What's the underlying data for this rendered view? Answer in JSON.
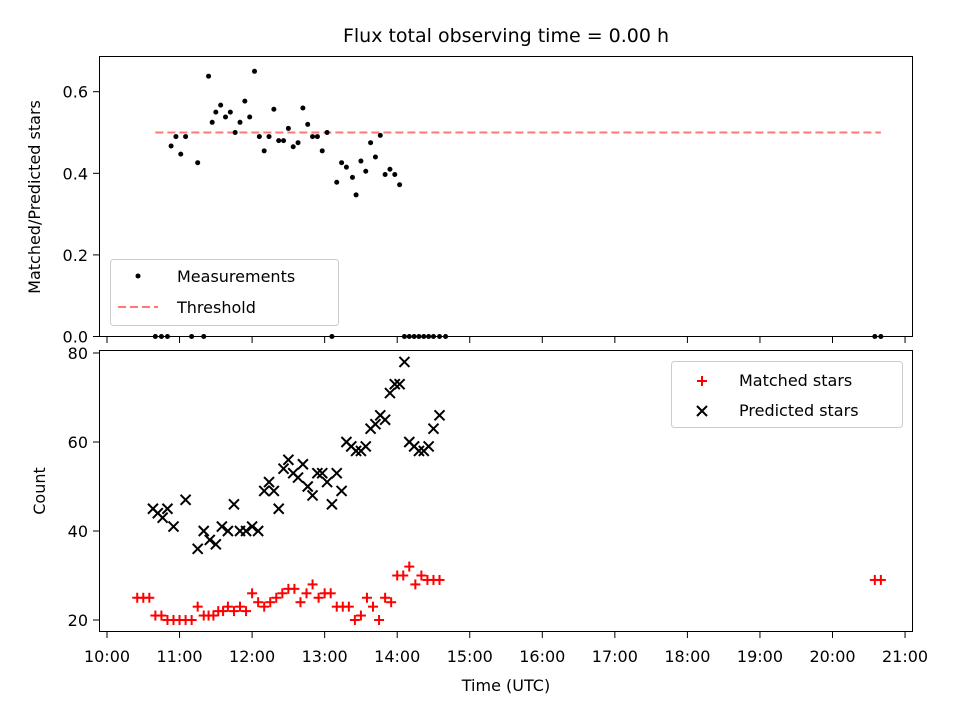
{
  "chart_data": [
    {
      "type": "scatter",
      "title": "Flux total observing time = 0.00 h",
      "xlabel": "",
      "ylabel": "Matched/Predicted stars",
      "xlim": [
        "10:00",
        "21:00"
      ],
      "ylim": [
        0,
        0.68
      ],
      "yticks": [
        0.0,
        0.2,
        0.4,
        0.6
      ],
      "yticklabels": [
        "0.0",
        "0.2",
        "0.4",
        "0.6"
      ],
      "legend_position": "lower-left",
      "threshold": {
        "name": "Threshold",
        "value": 0.5,
        "x_start": "10:40",
        "x_end": "20:40",
        "color": "#ff7777",
        "style": "dashed"
      },
      "series": [
        {
          "name": "Measurements",
          "marker": "dot",
          "color": "#000000",
          "x": [
            "10:40",
            "10:45",
            "10:50",
            "10:53",
            "10:57",
            "11:01",
            "11:05",
            "11:10",
            "11:15",
            "11:20",
            "11:24",
            "11:27",
            "11:30",
            "11:34",
            "11:38",
            "11:42",
            "11:46",
            "11:50",
            "11:54",
            "11:58",
            "12:02",
            "12:06",
            "12:10",
            "12:14",
            "12:18",
            "12:22",
            "12:26",
            "12:30",
            "12:34",
            "12:38",
            "12:42",
            "12:46",
            "12:50",
            "12:54",
            "12:58",
            "13:02",
            "13:06",
            "13:10",
            "13:14",
            "13:18",
            "13:23",
            "13:26",
            "13:30",
            "13:34",
            "13:38",
            "13:42",
            "13:46",
            "13:50",
            "13:54",
            "13:58",
            "14:02",
            "14:06",
            "14:10",
            "14:14",
            "14:18",
            "14:22",
            "14:26",
            "14:30",
            "14:35",
            "14:40",
            "20:35",
            "20:40"
          ],
          "y": [
            0.0,
            0.0,
            0.0,
            0.467,
            0.49,
            0.447,
            0.49,
            0.0,
            0.426,
            0.0,
            0.638,
            0.525,
            0.55,
            0.567,
            0.538,
            0.55,
            0.5,
            0.525,
            0.577,
            0.538,
            0.65,
            0.49,
            0.455,
            0.49,
            0.557,
            0.48,
            0.48,
            0.51,
            0.465,
            0.475,
            0.56,
            0.52,
            0.49,
            0.49,
            0.455,
            0.5,
            0.0,
            0.378,
            0.426,
            0.415,
            0.39,
            0.347,
            0.43,
            0.405,
            0.475,
            0.44,
            0.493,
            0.397,
            0.41,
            0.397,
            0.372,
            0.0,
            0.0,
            0.0,
            0.0,
            0.0,
            0.0,
            0.0,
            0.0,
            0.0,
            0.0,
            0.0
          ]
        }
      ]
    },
    {
      "type": "scatter",
      "title": "",
      "xlabel": "Time (UTC)",
      "ylabel": "Count",
      "xlim": [
        "10:00",
        "21:00"
      ],
      "ylim": [
        17,
        81
      ],
      "yticks": [
        20,
        40,
        60,
        80
      ],
      "yticklabels": [
        "20",
        "40",
        "60",
        "80"
      ],
      "xticks": [
        "10:00",
        "11:00",
        "12:00",
        "13:00",
        "14:00",
        "15:00",
        "16:00",
        "17:00",
        "18:00",
        "19:00",
        "20:00",
        "21:00"
      ],
      "legend_position": "top-right",
      "series": [
        {
          "name": "Matched stars",
          "marker": "plus",
          "color": "#ff0000",
          "x": [
            "10:25",
            "10:30",
            "10:35",
            "10:40",
            "10:45",
            "10:50",
            "10:55",
            "11:00",
            "11:05",
            "11:10",
            "11:15",
            "11:20",
            "11:24",
            "11:28",
            "11:32",
            "11:36",
            "11:40",
            "11:45",
            "11:50",
            "11:55",
            "12:00",
            "12:05",
            "12:10",
            "12:15",
            "12:20",
            "12:25",
            "12:30",
            "12:35",
            "12:40",
            "12:45",
            "12:50",
            "12:55",
            "13:00",
            "13:05",
            "13:10",
            "13:15",
            "13:20",
            "13:25",
            "13:30",
            "13:35",
            "13:40",
            "13:45",
            "13:50",
            "13:55",
            "14:00",
            "14:05",
            "14:10",
            "14:15",
            "14:20",
            "14:25",
            "14:30",
            "14:35",
            "20:35",
            "20:40"
          ],
          "y": [
            25,
            25,
            25,
            21,
            21,
            20,
            20,
            20,
            20,
            20,
            23,
            21,
            21,
            21,
            22,
            22,
            23,
            22,
            23,
            22,
            26,
            24,
            23,
            24,
            25,
            26,
            27,
            27,
            24,
            26,
            28,
            25,
            26,
            26,
            23,
            23,
            23,
            20,
            21,
            25,
            23,
            20,
            25,
            24,
            30,
            30,
            32,
            28,
            30,
            29,
            29,
            29,
            29,
            29
          ]
        },
        {
          "name": "Predicted stars",
          "marker": "x",
          "color": "#000000",
          "x": [
            "10:38",
            "10:42",
            "10:46",
            "10:50",
            "10:55",
            "11:05",
            "11:15",
            "11:20",
            "11:25",
            "11:30",
            "11:35",
            "11:40",
            "11:45",
            "11:50",
            "11:55",
            "12:00",
            "12:05",
            "12:10",
            "12:14",
            "12:18",
            "12:22",
            "12:26",
            "12:30",
            "12:34",
            "12:38",
            "12:42",
            "12:46",
            "12:50",
            "12:54",
            "12:58",
            "13:02",
            "13:06",
            "13:10",
            "13:14",
            "13:18",
            "13:22",
            "13:26",
            "13:30",
            "13:34",
            "13:38",
            "13:42",
            "13:46",
            "13:50",
            "13:54",
            "13:58",
            "14:02",
            "14:06",
            "14:10",
            "14:14",
            "14:18",
            "14:22",
            "14:26",
            "14:30",
            "14:35"
          ],
          "y": [
            45,
            44,
            43,
            45,
            41,
            47,
            36,
            40,
            38,
            37,
            41,
            40,
            46,
            40,
            40,
            41,
            40,
            49,
            51,
            49,
            45,
            54,
            56,
            53,
            52,
            55,
            50,
            48,
            53,
            53,
            51,
            46,
            53,
            49,
            60,
            59,
            58,
            58,
            59,
            63,
            64,
            66,
            65,
            71,
            73,
            73,
            78,
            60,
            59,
            58,
            58,
            59,
            63,
            66
          ]
        }
      ]
    }
  ]
}
